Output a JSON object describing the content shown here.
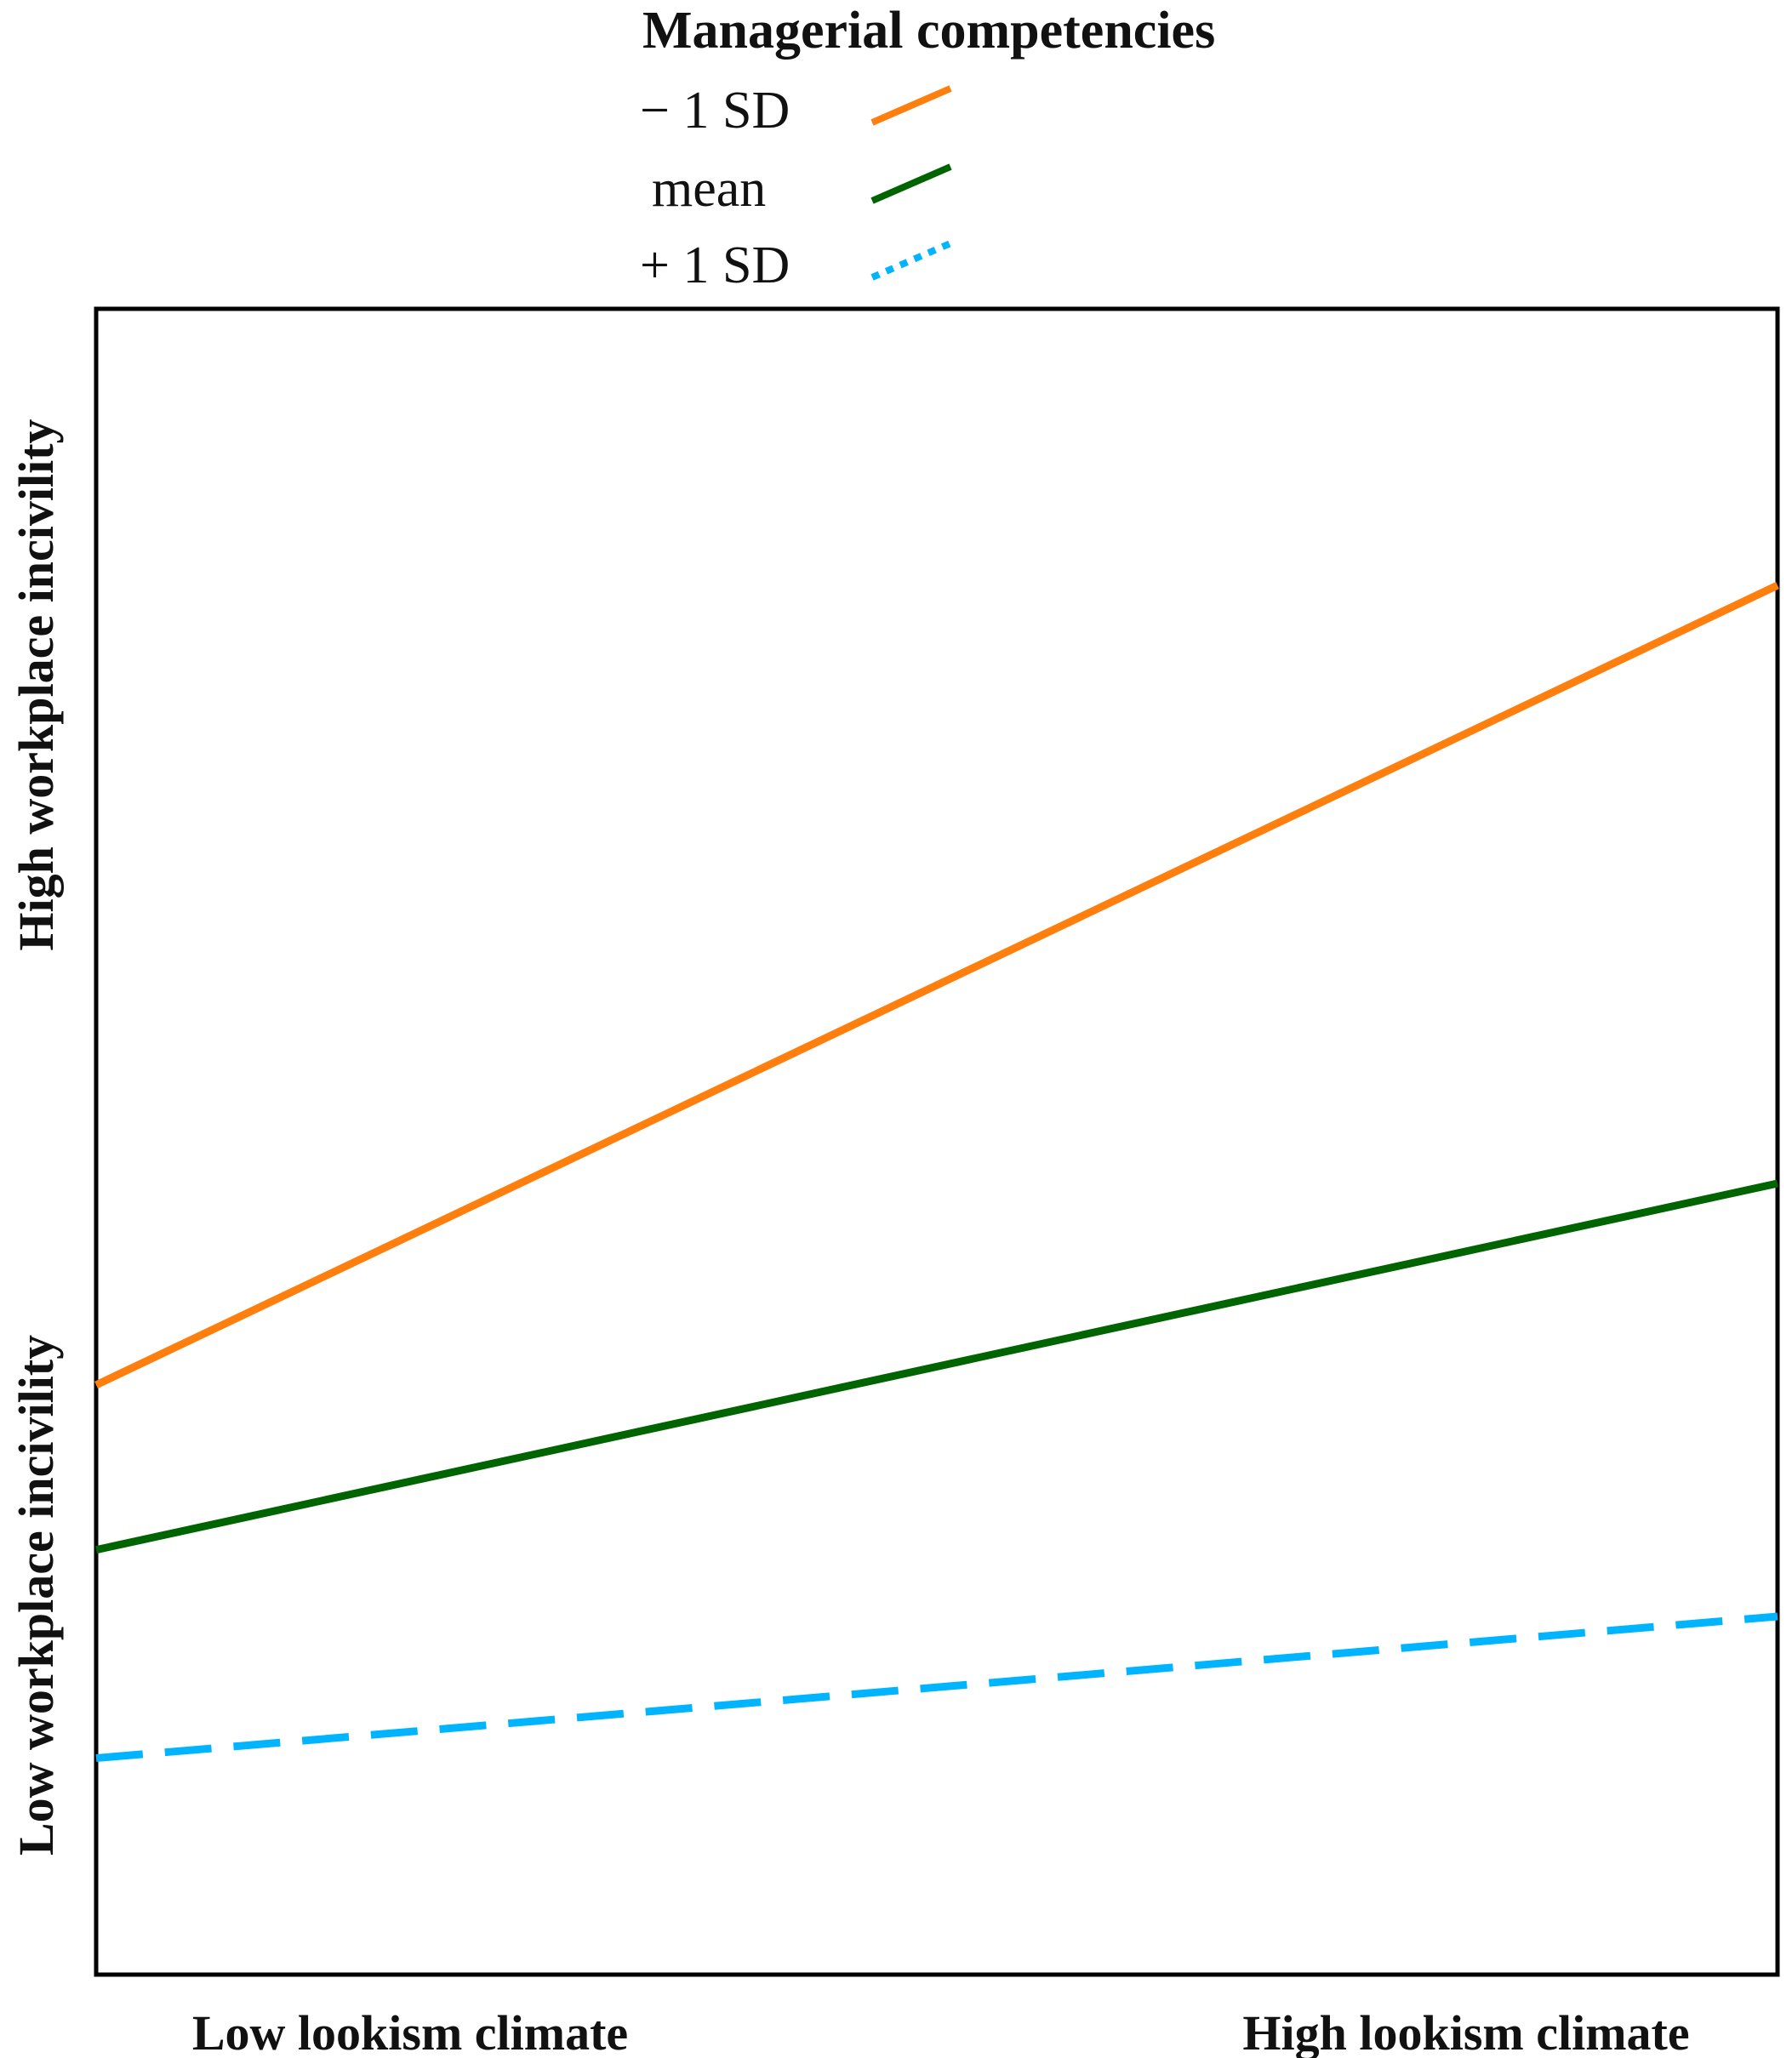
{
  "chart_data": {
    "type": "line",
    "title": "",
    "legend": {
      "title": "Managerial competencies",
      "placement": "top-center"
    },
    "x": [
      "Low lookism climate",
      "High lookism climate"
    ],
    "x_tick_labels": [
      "Low lookism climate",
      "High lookism climate"
    ],
    "y_tick_labels": [
      "Low workplace incivility",
      "High workplace incivility"
    ],
    "xlabel": "",
    "ylabel": "",
    "ylim": [
      0,
      1
    ],
    "grid": false,
    "series": [
      {
        "name": "− 1 SD",
        "values": [
          0.354,
          0.834
        ],
        "color": "#ff7f0e",
        "legend_style": "solid",
        "line_style": "solid"
      },
      {
        "name": "mean",
        "values": [
          0.255,
          0.475
        ],
        "color": "#006400",
        "legend_style": "solid",
        "line_style": "solid"
      },
      {
        "name": "+ 1 SD",
        "values": [
          0.13,
          0.215
        ],
        "color": "#00b4ff",
        "legend_style": "dotted",
        "line_style": "dashed"
      }
    ]
  }
}
